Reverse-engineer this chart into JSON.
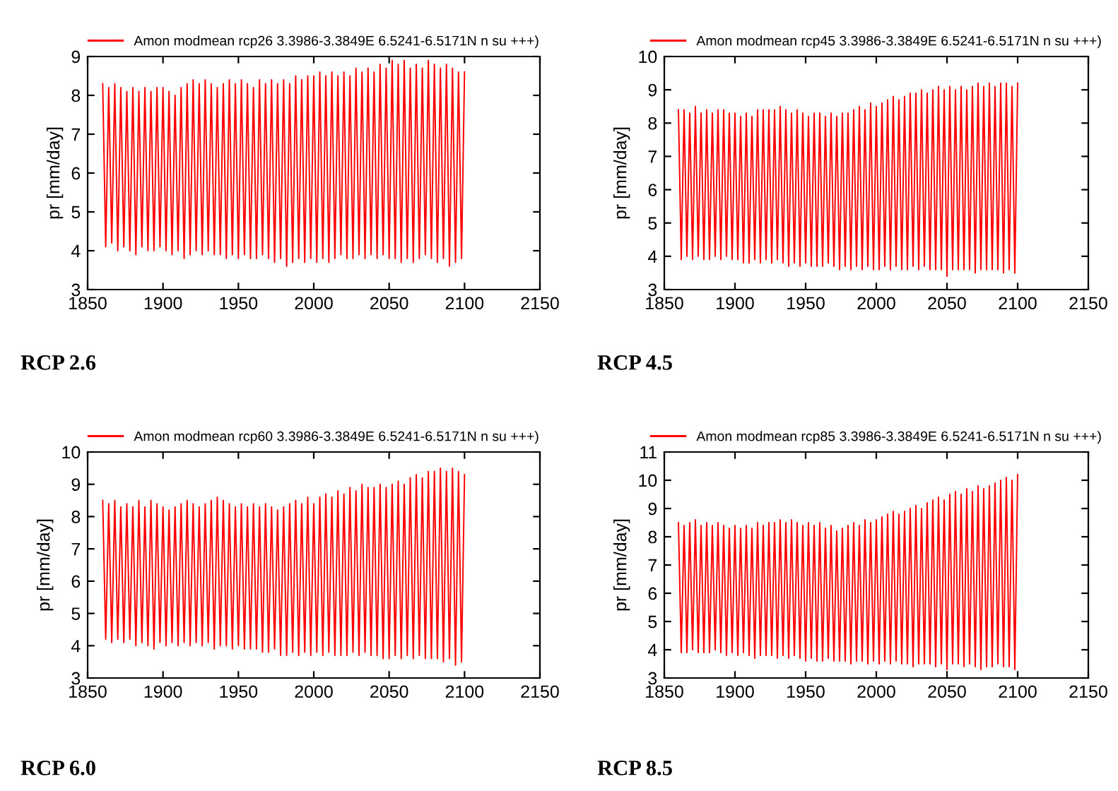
{
  "chart_data": [
    {
      "type": "line",
      "ylabel": "pr [mm/day]",
      "annotations": [
        "RCP 2.6"
      ],
      "xlim": [
        1850,
        2150
      ],
      "xticks": [
        1850,
        1900,
        1950,
        2000,
        2050,
        2100,
        2150
      ],
      "ylim": [
        3,
        9
      ],
      "yticks": [
        3,
        4,
        5,
        6,
        7,
        8,
        9
      ],
      "legend": "top",
      "line_style": "solid",
      "x": [
        1860,
        1862,
        1864,
        1866,
        1868,
        1870,
        1872,
        1874,
        1876,
        1878,
        1880,
        1882,
        1884,
        1886,
        1888,
        1890,
        1892,
        1894,
        1896,
        1898,
        1900,
        1902,
        1904,
        1906,
        1908,
        1910,
        1912,
        1914,
        1916,
        1918,
        1920,
        1922,
        1924,
        1926,
        1928,
        1930,
        1932,
        1934,
        1936,
        1938,
        1940,
        1942,
        1944,
        1946,
        1948,
        1950,
        1952,
        1954,
        1956,
        1958,
        1960,
        1962,
        1964,
        1966,
        1968,
        1970,
        1972,
        1974,
        1976,
        1978,
        1980,
        1982,
        1984,
        1986,
        1988,
        1990,
        1992,
        1994,
        1996,
        1998,
        2000,
        2002,
        2004,
        2006,
        2008,
        2010,
        2012,
        2014,
        2016,
        2018,
        2020,
        2022,
        2024,
        2026,
        2028,
        2030,
        2032,
        2034,
        2036,
        2038,
        2040,
        2042,
        2044,
        2046,
        2048,
        2050,
        2052,
        2054,
        2056,
        2058,
        2060,
        2062,
        2064,
        2066,
        2068,
        2070,
        2072,
        2074,
        2076,
        2078,
        2080,
        2082,
        2084,
        2086,
        2088,
        2090,
        2092,
        2094,
        2096,
        2098,
        2100
      ],
      "series": [
        {
          "name": "Amon modmean rcp26 3.3986-3.3849E 6.5241-6.5171N n su +++)",
          "color": "#ff0000",
          "values": [
            8.3,
            4.1,
            8.2,
            4.2,
            8.3,
            4.0,
            8.2,
            4.1,
            8.1,
            4.0,
            8.2,
            3.9,
            8.1,
            4.1,
            8.2,
            4.0,
            8.1,
            4.0,
            8.2,
            4.1,
            8.2,
            4.0,
            8.1,
            3.9,
            8.0,
            4.0,
            8.2,
            3.8,
            8.3,
            3.9,
            8.4,
            4.0,
            8.3,
            3.9,
            8.4,
            4.0,
            8.3,
            3.9,
            8.2,
            3.9,
            8.3,
            3.8,
            8.4,
            3.9,
            8.3,
            3.8,
            8.4,
            3.9,
            8.3,
            3.8,
            8.2,
            3.8,
            8.4,
            3.9,
            8.3,
            3.8,
            8.4,
            3.7,
            8.3,
            3.8,
            8.4,
            3.6,
            8.3,
            3.7,
            8.5,
            3.8,
            8.4,
            3.7,
            8.5,
            3.8,
            8.5,
            3.7,
            8.6,
            3.8,
            8.5,
            3.7,
            8.6,
            3.8,
            8.5,
            3.9,
            8.6,
            3.8,
            8.5,
            3.8,
            8.7,
            3.9,
            8.6,
            3.8,
            8.7,
            3.9,
            8.6,
            3.8,
            8.8,
            3.9,
            8.7,
            3.8,
            8.9,
            3.8,
            8.8,
            3.7,
            8.9,
            3.8,
            8.7,
            3.7,
            8.8,
            3.8,
            8.7,
            3.9,
            8.9,
            3.8,
            8.8,
            3.7,
            8.7,
            3.8,
            8.8,
            3.6,
            8.7,
            3.7,
            8.6,
            3.8,
            8.6
          ]
        }
      ]
    },
    {
      "type": "line",
      "ylabel": "pr [mm/day]",
      "annotations": [
        "RCP 4.5"
      ],
      "xlim": [
        1850,
        2150
      ],
      "xticks": [
        1850,
        1900,
        1950,
        2000,
        2050,
        2100,
        2150
      ],
      "ylim": [
        3,
        10
      ],
      "yticks": [
        3,
        4,
        5,
        6,
        7,
        8,
        9,
        10
      ],
      "legend": "top",
      "line_style": "solid",
      "x": [
        1860,
        1862,
        1864,
        1866,
        1868,
        1870,
        1872,
        1874,
        1876,
        1878,
        1880,
        1882,
        1884,
        1886,
        1888,
        1890,
        1892,
        1894,
        1896,
        1898,
        1900,
        1902,
        1904,
        1906,
        1908,
        1910,
        1912,
        1914,
        1916,
        1918,
        1920,
        1922,
        1924,
        1926,
        1928,
        1930,
        1932,
        1934,
        1936,
        1938,
        1940,
        1942,
        1944,
        1946,
        1948,
        1950,
        1952,
        1954,
        1956,
        1958,
        1960,
        1962,
        1964,
        1966,
        1968,
        1970,
        1972,
        1974,
        1976,
        1978,
        1980,
        1982,
        1984,
        1986,
        1988,
        1990,
        1992,
        1994,
        1996,
        1998,
        2000,
        2002,
        2004,
        2006,
        2008,
        2010,
        2012,
        2014,
        2016,
        2018,
        2020,
        2022,
        2024,
        2026,
        2028,
        2030,
        2032,
        2034,
        2036,
        2038,
        2040,
        2042,
        2044,
        2046,
        2048,
        2050,
        2052,
        2054,
        2056,
        2058,
        2060,
        2062,
        2064,
        2066,
        2068,
        2070,
        2072,
        2074,
        2076,
        2078,
        2080,
        2082,
        2084,
        2086,
        2088,
        2090,
        2092,
        2094,
        2096,
        2098,
        2100
      ],
      "series": [
        {
          "name": "Amon modmean rcp45 3.3986-3.3849E 6.5241-6.5171N n su +++)",
          "color": "#ff0000",
          "values": [
            8.4,
            3.9,
            8.4,
            4.0,
            8.3,
            3.9,
            8.5,
            4.0,
            8.3,
            3.9,
            8.4,
            3.9,
            8.3,
            4.0,
            8.4,
            3.9,
            8.4,
            4.0,
            8.3,
            3.9,
            8.3,
            3.9,
            8.2,
            3.8,
            8.3,
            3.8,
            8.2,
            3.9,
            8.4,
            3.8,
            8.4,
            3.9,
            8.4,
            3.8,
            8.4,
            3.9,
            8.5,
            3.8,
            8.4,
            3.7,
            8.3,
            3.8,
            8.4,
            3.7,
            8.3,
            3.8,
            8.2,
            3.7,
            8.3,
            3.7,
            8.3,
            3.7,
            8.2,
            3.8,
            8.3,
            3.7,
            8.2,
            3.6,
            8.3,
            3.7,
            8.3,
            3.6,
            8.4,
            3.7,
            8.5,
            3.6,
            8.4,
            3.7,
            8.6,
            3.6,
            8.5,
            3.6,
            8.6,
            3.7,
            8.7,
            3.6,
            8.8,
            3.7,
            8.7,
            3.6,
            8.8,
            3.6,
            8.9,
            3.7,
            8.9,
            3.6,
            9.0,
            3.7,
            8.9,
            3.6,
            9.0,
            3.6,
            9.1,
            3.6,
            9.0,
            3.4,
            9.1,
            3.6,
            9.0,
            3.6,
            9.1,
            3.6,
            9.0,
            3.6,
            9.1,
            3.5,
            9.2,
            3.6,
            9.1,
            3.6,
            9.2,
            3.6,
            9.1,
            3.6,
            9.2,
            3.5,
            9.2,
            3.6,
            9.1,
            3.5,
            9.2
          ]
        }
      ]
    },
    {
      "type": "line",
      "ylabel": "pr [mm/day]",
      "annotations": [
        "RCP 6.0"
      ],
      "xlim": [
        1850,
        2150
      ],
      "xticks": [
        1850,
        1900,
        1950,
        2000,
        2050,
        2100,
        2150
      ],
      "ylim": [
        3,
        10
      ],
      "yticks": [
        3,
        4,
        5,
        6,
        7,
        8,
        9,
        10
      ],
      "legend": "top",
      "line_style": "solid",
      "x": [
        1860,
        1862,
        1864,
        1866,
        1868,
        1870,
        1872,
        1874,
        1876,
        1878,
        1880,
        1882,
        1884,
        1886,
        1888,
        1890,
        1892,
        1894,
        1896,
        1898,
        1900,
        1902,
        1904,
        1906,
        1908,
        1910,
        1912,
        1914,
        1916,
        1918,
        1920,
        1922,
        1924,
        1926,
        1928,
        1930,
        1932,
        1934,
        1936,
        1938,
        1940,
        1942,
        1944,
        1946,
        1948,
        1950,
        1952,
        1954,
        1956,
        1958,
        1960,
        1962,
        1964,
        1966,
        1968,
        1970,
        1972,
        1974,
        1976,
        1978,
        1980,
        1982,
        1984,
        1986,
        1988,
        1990,
        1992,
        1994,
        1996,
        1998,
        2000,
        2002,
        2004,
        2006,
        2008,
        2010,
        2012,
        2014,
        2016,
        2018,
        2020,
        2022,
        2024,
        2026,
        2028,
        2030,
        2032,
        2034,
        2036,
        2038,
        2040,
        2042,
        2044,
        2046,
        2048,
        2050,
        2052,
        2054,
        2056,
        2058,
        2060,
        2062,
        2064,
        2066,
        2068,
        2070,
        2072,
        2074,
        2076,
        2078,
        2080,
        2082,
        2084,
        2086,
        2088,
        2090,
        2092,
        2094,
        2096,
        2098,
        2100
      ],
      "series": [
        {
          "name": "Amon modmean rcp60 3.3986-3.3849E 6.5241-6.5171N n su +++)",
          "color": "#ff0000",
          "values": [
            8.5,
            4.2,
            8.4,
            4.1,
            8.5,
            4.2,
            8.3,
            4.1,
            8.4,
            4.2,
            8.3,
            4.0,
            8.5,
            4.1,
            8.3,
            4.0,
            8.5,
            3.9,
            8.4,
            4.1,
            8.3,
            4.0,
            8.2,
            4.1,
            8.3,
            4.0,
            8.4,
            4.1,
            8.5,
            4.0,
            8.4,
            4.1,
            8.3,
            4.0,
            8.4,
            4.1,
            8.5,
            3.9,
            8.6,
            4.0,
            8.5,
            4.0,
            8.4,
            3.9,
            8.3,
            4.0,
            8.4,
            3.9,
            8.3,
            3.9,
            8.4,
            3.9,
            8.3,
            3.8,
            8.4,
            3.8,
            8.3,
            3.9,
            8.2,
            3.7,
            8.3,
            3.7,
            8.4,
            3.8,
            8.5,
            3.7,
            8.4,
            3.8,
            8.6,
            3.7,
            8.4,
            3.8,
            8.6,
            3.7,
            8.7,
            3.8,
            8.6,
            3.7,
            8.8,
            3.7,
            8.7,
            3.7,
            8.9,
            3.8,
            8.8,
            3.7,
            9.0,
            3.8,
            8.9,
            3.7,
            8.9,
            3.7,
            9.0,
            3.6,
            8.9,
            3.6,
            9.0,
            3.7,
            9.1,
            3.6,
            9.0,
            3.7,
            9.2,
            3.6,
            9.3,
            3.7,
            9.2,
            3.6,
            9.4,
            3.6,
            9.4,
            3.6,
            9.5,
            3.5,
            9.4,
            3.6,
            9.5,
            3.4,
            9.4,
            3.5,
            9.3
          ]
        }
      ]
    },
    {
      "type": "line",
      "ylabel": "pr [mm/day]",
      "annotations": [
        "RCP 8.5"
      ],
      "xlim": [
        1850,
        2150
      ],
      "xticks": [
        1850,
        1900,
        1950,
        2000,
        2050,
        2100,
        2150
      ],
      "ylim": [
        3,
        11
      ],
      "yticks": [
        3,
        4,
        5,
        6,
        7,
        8,
        9,
        10,
        11
      ],
      "legend": "top",
      "line_style": "solid",
      "x": [
        1860,
        1862,
        1864,
        1866,
        1868,
        1870,
        1872,
        1874,
        1876,
        1878,
        1880,
        1882,
        1884,
        1886,
        1888,
        1890,
        1892,
        1894,
        1896,
        1898,
        1900,
        1902,
        1904,
        1906,
        1908,
        1910,
        1912,
        1914,
        1916,
        1918,
        1920,
        1922,
        1924,
        1926,
        1928,
        1930,
        1932,
        1934,
        1936,
        1938,
        1940,
        1942,
        1944,
        1946,
        1948,
        1950,
        1952,
        1954,
        1956,
        1958,
        1960,
        1962,
        1964,
        1966,
        1968,
        1970,
        1972,
        1974,
        1976,
        1978,
        1980,
        1982,
        1984,
        1986,
        1988,
        1990,
        1992,
        1994,
        1996,
        1998,
        2000,
        2002,
        2004,
        2006,
        2008,
        2010,
        2012,
        2014,
        2016,
        2018,
        2020,
        2022,
        2024,
        2026,
        2028,
        2030,
        2032,
        2034,
        2036,
        2038,
        2040,
        2042,
        2044,
        2046,
        2048,
        2050,
        2052,
        2054,
        2056,
        2058,
        2060,
        2062,
        2064,
        2066,
        2068,
        2070,
        2072,
        2074,
        2076,
        2078,
        2080,
        2082,
        2084,
        2086,
        2088,
        2090,
        2092,
        2094,
        2096,
        2098,
        2100
      ],
      "series": [
        {
          "name": "Amon modmean rcp85 3.3986-3.3849E 6.5241-6.5171N n su +++)",
          "color": "#ff0000",
          "values": [
            8.5,
            3.9,
            8.4,
            3.9,
            8.5,
            4.0,
            8.6,
            3.9,
            8.4,
            3.9,
            8.5,
            3.9,
            8.4,
            4.0,
            8.5,
            3.9,
            8.4,
            3.8,
            8.3,
            3.9,
            8.4,
            3.8,
            8.3,
            3.9,
            8.4,
            3.8,
            8.3,
            3.7,
            8.5,
            3.8,
            8.4,
            3.8,
            8.5,
            3.8,
            8.5,
            3.7,
            8.6,
            3.8,
            8.5,
            3.7,
            8.6,
            3.8,
            8.5,
            3.7,
            8.4,
            3.6,
            8.5,
            3.7,
            8.4,
            3.6,
            8.5,
            3.6,
            8.3,
            3.7,
            8.4,
            3.6,
            8.2,
            3.6,
            8.3,
            3.6,
            8.4,
            3.5,
            8.5,
            3.6,
            8.4,
            3.6,
            8.6,
            3.5,
            8.5,
            3.6,
            8.6,
            3.5,
            8.7,
            3.6,
            8.8,
            3.5,
            8.9,
            3.6,
            8.8,
            3.5,
            8.9,
            3.5,
            9.0,
            3.4,
            9.1,
            3.5,
            9.0,
            3.5,
            9.2,
            3.5,
            9.3,
            3.4,
            9.4,
            3.5,
            9.3,
            3.3,
            9.5,
            3.5,
            9.6,
            3.5,
            9.5,
            3.4,
            9.7,
            3.5,
            9.6,
            3.4,
            9.8,
            3.3,
            9.7,
            3.4,
            9.8,
            3.4,
            9.9,
            3.5,
            10.0,
            3.4,
            10.1,
            3.4,
            10.0,
            3.3,
            10.2
          ]
        }
      ]
    }
  ]
}
